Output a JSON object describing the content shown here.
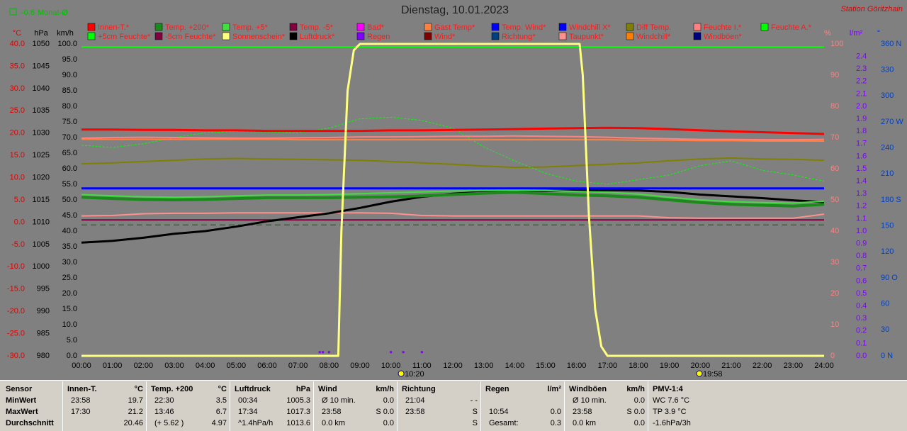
{
  "chart_data": {
    "type": "line",
    "title": "Dienstag, 10.01.2023",
    "station": "Station Göritzhain",
    "monthly_average": {
      "value": -0.6,
      "label": "Monat-Ø",
      "axis": "temp",
      "color": "#00c000"
    },
    "x": [
      0,
      1,
      2,
      3,
      4,
      5,
      6,
      7,
      8,
      9,
      10,
      11,
      12,
      13,
      14,
      15,
      16,
      17,
      18,
      19,
      20,
      21,
      22,
      23,
      24
    ],
    "xlim": [
      0,
      24
    ],
    "xticks": [
      {
        "value": 0,
        "label": "00:00"
      },
      {
        "value": 1,
        "label": "01:00"
      },
      {
        "value": 2,
        "label": "02:00"
      },
      {
        "value": 3,
        "label": "03:00"
      },
      {
        "value": 4,
        "label": "04:00"
      },
      {
        "value": 5,
        "label": "05:00"
      },
      {
        "value": 6,
        "label": "06:00"
      },
      {
        "value": 7,
        "label": "07:00"
      },
      {
        "value": 8,
        "label": "08:00"
      },
      {
        "value": 9,
        "label": "09:00"
      },
      {
        "value": 10,
        "label": "10:00"
      },
      {
        "value": 11,
        "label": "11:00"
      },
      {
        "value": 12,
        "label": "12:00"
      },
      {
        "value": 13,
        "label": "13:00"
      },
      {
        "value": 14,
        "label": "14:00"
      },
      {
        "value": 15,
        "label": "15:00"
      },
      {
        "value": 16,
        "label": "16:00"
      },
      {
        "value": 17,
        "label": "17:00"
      },
      {
        "value": 18,
        "label": "18:00"
      },
      {
        "value": 19,
        "label": "19:00"
      },
      {
        "value": 20,
        "label": "20:00"
      },
      {
        "value": 21,
        "label": "21:00"
      },
      {
        "value": 22,
        "label": "22:00"
      },
      {
        "value": 23,
        "label": "23:00"
      },
      {
        "value": 24,
        "label": "24:00"
      }
    ],
    "sun_markers": [
      {
        "time": 10.33,
        "label": "10:20"
      },
      {
        "time": 19.97,
        "label": "19:58"
      }
    ],
    "axes": {
      "temp": {
        "label": "°C",
        "color": "#e00000",
        "lim": [
          -30,
          40
        ],
        "ticks": [
          {
            "value": 40,
            "label": "40.0"
          },
          {
            "value": 35,
            "label": "35.0"
          },
          {
            "value": 30,
            "label": "30.0"
          },
          {
            "value": 25,
            "label": "25.0"
          },
          {
            "value": 20,
            "label": "20.0"
          },
          {
            "value": 15,
            "label": "15.0"
          },
          {
            "value": 10,
            "label": "10.0"
          },
          {
            "value": 5,
            "label": "5.0"
          },
          {
            "value": 0,
            "label": "0.0"
          },
          {
            "value": -5,
            "label": "-5.0"
          },
          {
            "value": -10,
            "label": "-10.0"
          },
          {
            "value": -15,
            "label": "-15.0"
          },
          {
            "value": -20,
            "label": "-20.0"
          },
          {
            "value": -25,
            "label": "-25.0"
          },
          {
            "value": -30,
            "label": "-30.0"
          }
        ]
      },
      "pressure": {
        "label": "hPa",
        "color": "#000000",
        "lim": [
          980,
          1050
        ],
        "ticks": [
          1050,
          1045,
          1040,
          1035,
          1030,
          1025,
          1020,
          1015,
          1010,
          1005,
          1000,
          995,
          990,
          985,
          980
        ]
      },
      "speed": {
        "label": "km/h",
        "color": "#000000",
        "lim": [
          0,
          100
        ],
        "ticks": [
          {
            "value": 100,
            "label": "100.0"
          },
          {
            "value": 95,
            "label": "95.0"
          },
          {
            "value": 90,
            "label": "90.0"
          },
          {
            "value": 85,
            "label": "85.0"
          },
          {
            "value": 80,
            "label": "80.0"
          },
          {
            "value": 75,
            "label": "75.0"
          },
          {
            "value": 70,
            "label": "70.0"
          },
          {
            "value": 65,
            "label": "65.0"
          },
          {
            "value": 60,
            "label": "60.0"
          },
          {
            "value": 55,
            "label": "55.0"
          },
          {
            "value": 50,
            "label": "50.0"
          },
          {
            "value": 45,
            "label": "45.0"
          },
          {
            "value": 40,
            "label": "40.0"
          },
          {
            "value": 35,
            "label": "35.0"
          },
          {
            "value": 30,
            "label": "30.0"
          },
          {
            "value": 25,
            "label": "25.0"
          },
          {
            "value": 20,
            "label": "20.0"
          },
          {
            "value": 15,
            "label": "15.0"
          },
          {
            "value": 10,
            "label": "10.0"
          },
          {
            "value": 5,
            "label": "5.0"
          },
          {
            "value": 0,
            "label": "0.0"
          }
        ]
      },
      "percent": {
        "label": "%",
        "color": "#ff8080",
        "lim": [
          0,
          100
        ],
        "ticks": [
          100,
          90,
          80,
          70,
          60,
          50,
          40,
          30,
          20,
          10,
          0
        ]
      },
      "rain": {
        "label": "l/m²",
        "color": "#8000ff",
        "lim": [
          0,
          2.5
        ],
        "ticks": [
          {
            "value": 2.4,
            "label": "2.4"
          },
          {
            "value": 2.3,
            "label": "2.3"
          },
          {
            "value": 2.2,
            "label": "2.2"
          },
          {
            "value": 2.1,
            "label": "2.1"
          },
          {
            "value": 2,
            "label": "2.0"
          },
          {
            "value": 1.9,
            "label": "1.9"
          },
          {
            "value": 1.8,
            "label": "1.8"
          },
          {
            "value": 1.7,
            "label": "1.7"
          },
          {
            "value": 1.6,
            "label": "1.6"
          },
          {
            "value": 1.5,
            "label": "1.5"
          },
          {
            "value": 1.4,
            "label": "1.4"
          },
          {
            "value": 1.3,
            "label": "1.3"
          },
          {
            "value": 1.2,
            "label": "1.2"
          },
          {
            "value": 1.1,
            "label": "1.1"
          },
          {
            "value": 1,
            "label": "1.0"
          },
          {
            "value": 0.9,
            "label": "0.9"
          },
          {
            "value": 0.8,
            "label": "0.8"
          },
          {
            "value": 0.7,
            "label": "0.7"
          },
          {
            "value": 0.6,
            "label": "0.6"
          },
          {
            "value": 0.5,
            "label": "0.5"
          },
          {
            "value": 0.4,
            "label": "0.4"
          },
          {
            "value": 0.3,
            "label": "0.3"
          },
          {
            "value": 0.2,
            "label": "0.2"
          },
          {
            "value": 0.1,
            "label": "0.1"
          },
          {
            "value": 0,
            "label": "0.0"
          }
        ]
      },
      "direction": {
        "label": "°",
        "color": "#0040c0",
        "lim": [
          0,
          360
        ],
        "ticks": [
          {
            "value": 360,
            "label": "360 N"
          },
          330,
          300,
          {
            "value": 270,
            "label": "270 W"
          },
          240,
          210,
          {
            "value": 180,
            "label": "180 S"
          },
          150,
          120,
          {
            "value": 90,
            "label": "90 O"
          },
          60,
          30,
          {
            "value": 0,
            "label": "0 N"
          }
        ]
      }
    },
    "series": [
      {
        "name": "Innen-T.*",
        "color": "#ff0000",
        "axis": "temp",
        "width": 3,
        "values": [
          20.8,
          20.8,
          20.7,
          20.7,
          20.6,
          20.6,
          20.5,
          20.5,
          20.5,
          20.5,
          20.6,
          20.6,
          20.7,
          20.8,
          20.9,
          21.0,
          21.1,
          21.2,
          21.1,
          20.9,
          20.6,
          20.4,
          20.2,
          20.0,
          19.8
        ]
      },
      {
        "name": "Temp. +200*",
        "color": "#1a8a1a",
        "axis": "temp",
        "width": 4,
        "values": [
          5.6,
          5.3,
          5.1,
          5.0,
          5.1,
          5.3,
          5.5,
          5.5,
          5.5,
          5.6,
          5.7,
          5.9,
          6.2,
          6.5,
          6.7,
          6.4,
          6.1,
          5.9,
          5.6,
          5.0,
          4.4,
          4.0,
          3.8,
          3.6,
          4.0
        ]
      },
      {
        "name": "Temp. +5*",
        "color": "#40e040",
        "axis": "temp",
        "width": 2,
        "values": [
          6.2,
          5.9,
          5.7,
          5.6,
          5.7,
          5.9,
          6.1,
          6.1,
          6.2,
          6.4,
          6.6,
          6.8,
          7.0,
          7.1,
          7.2,
          7.1,
          6.9,
          6.7,
          6.3,
          5.6,
          5.0,
          4.6,
          4.4,
          4.3,
          4.7
        ]
      },
      {
        "name": "Temp. -5*",
        "color": "#800040",
        "axis": "temp",
        "width": 2,
        "values": [
          0.5,
          0.5,
          0.5,
          0.5,
          0.5,
          0.5,
          0.5,
          0.5,
          0.5,
          0.5,
          0.5,
          0.5,
          0.5,
          0.5,
          0.5,
          0.5,
          0.5,
          0.5,
          0.5,
          0.5,
          0.5,
          0.5,
          0.5,
          0.5,
          0.5
        ]
      },
      {
        "name": "Bad*",
        "color": "#ff00ff"
      },
      {
        "name": "Gast Temp*",
        "color": "#ff8040",
        "axis": "temp",
        "width": 2,
        "values": [
          18.6,
          18.6,
          18.6,
          18.6,
          18.6,
          18.6,
          18.6,
          18.5,
          18.5,
          18.5,
          18.5,
          18.5,
          18.5,
          18.5,
          18.5,
          18.5,
          18.5,
          18.5,
          18.4,
          18.4,
          18.3,
          18.3,
          18.2,
          18.2,
          18.2
        ]
      },
      {
        "name": "Temp. Wind*",
        "color": "#0000ff"
      },
      {
        "name": "Windchill X*",
        "color": "#0000ff",
        "axis": "temp",
        "width": 3,
        "values": [
          7.6,
          7.6,
          7.6,
          7.6,
          7.6,
          7.6,
          7.6,
          7.6,
          7.6,
          7.6,
          7.6,
          7.6,
          7.6,
          7.6,
          7.6,
          7.6,
          7.6,
          7.6,
          7.6,
          7.6,
          7.6,
          7.6,
          7.6,
          7.6,
          7.6
        ]
      },
      {
        "name": "Diff Temp.",
        "color": "#808000",
        "axis": "temp",
        "width": 2,
        "values": [
          13.1,
          13.3,
          13.6,
          13.9,
          14.2,
          14.3,
          14.2,
          14.1,
          14.0,
          13.9,
          13.6,
          13.3,
          13.0,
          12.6,
          12.3,
          12.4,
          12.7,
          13.0,
          13.3,
          13.8,
          14.2,
          14.4,
          14.2,
          14.1,
          13.9
        ]
      },
      {
        "name": "Feuchte I.*",
        "color": "#ff8080",
        "axis": "percent",
        "width": 2,
        "values": [
          69.8,
          70.0,
          70.1,
          70.0,
          69.9,
          69.8,
          69.8,
          69.9,
          70.0,
          70.2,
          70.2,
          70.3,
          70.4,
          70.4,
          70.5,
          70.4,
          70.3,
          70.1,
          69.8,
          69.6,
          69.4,
          69.4,
          69.3,
          69.3,
          69.4
        ]
      },
      {
        "name": "Feuchte A.*",
        "color": "#00ff00",
        "axis": "percent",
        "width": 2,
        "values": [
          99,
          99,
          99,
          99,
          99,
          99,
          99,
          99,
          99,
          99,
          99,
          99,
          99,
          99,
          99,
          99,
          99,
          99,
          99,
          99,
          99,
          99,
          99,
          99,
          99
        ]
      },
      {
        "name": "+5cm Feuchte*",
        "color": "#00ff00",
        "axis": "percent",
        "width": 1,
        "dashed": true,
        "values": [
          67.5,
          66.8,
          68.0,
          70.0,
          71.5,
          72.0,
          71.8,
          71.5,
          73.0,
          76.0,
          76.5,
          75.5,
          73.0,
          67.0,
          62.5,
          58.5,
          56.0,
          55.0,
          56.5,
          58.0,
          61.0,
          62.5,
          59.5,
          58.0,
          56.0
        ]
      },
      {
        "name": "-5cm Feuchte*",
        "color": "#800040"
      },
      {
        "name": "Sonnenschein*",
        "color": "#ffff80",
        "axis": "percent",
        "width": 3,
        "x": [
          0,
          8.3,
          8.4,
          8.6,
          8.8,
          9.0,
          16.1,
          16.2,
          16.4,
          16.6,
          16.8,
          17.0,
          24
        ],
        "values": [
          0,
          0,
          40,
          85,
          98,
          100,
          100,
          90,
          45,
          15,
          3,
          0,
          0
        ]
      },
      {
        "name": "Luftdruck*",
        "color": "#000000",
        "label_color": "#000000",
        "axis": "pressure",
        "width": 3,
        "values": [
          1005.4,
          1005.8,
          1006.5,
          1007.4,
          1008.0,
          1009.0,
          1010.2,
          1011.1,
          1012.0,
          1013.2,
          1014.6,
          1015.7,
          1016.4,
          1016.8,
          1017.0,
          1017.0,
          1017.1,
          1017.2,
          1017.1,
          1016.8,
          1016.2,
          1015.8,
          1015.4,
          1014.9,
          1014.5
        ]
      },
      {
        "name": "Regen",
        "color": "#8000ff",
        "label_color": "#8000ff",
        "axis": "rain",
        "markers": true,
        "x": [
          7.7,
          7.8,
          8.0,
          10.0,
          10.4,
          11.0
        ],
        "values": [
          0.03,
          0.03,
          0.03,
          0.03,
          0.03,
          0.03
        ]
      },
      {
        "name": "Wind*",
        "color": "#800000",
        "label_color": "#800000"
      },
      {
        "name": "Richtung*",
        "color": "#004080",
        "label_color": "#0040a0"
      },
      {
        "name": "Taupunkt*",
        "color": "#ff9090",
        "axis": "temp",
        "width": 2,
        "values": [
          1.4,
          1.5,
          1.9,
          2.0,
          2.0,
          2.1,
          2.1,
          2.1,
          2.1,
          2.1,
          2.0,
          1.5,
          1.4,
          1.4,
          1.4,
          1.4,
          1.4,
          1.4,
          1.4,
          1.0,
          0.9,
          0.9,
          0.9,
          0.9,
          1.8
        ]
      },
      {
        "name": "Windchill*",
        "color": "#ff8000"
      },
      {
        "name": "Windböen*",
        "color": "#000080",
        "label_color": "#400000"
      }
    ]
  },
  "table": {
    "sensor_header": "Sensor",
    "row_labels": [
      "MinWert",
      "MaxWert",
      "Durchschnitt"
    ],
    "blocks": [
      {
        "title": "Innen-T.",
        "unit": "°C",
        "rows": [
          [
            "23:58",
            "19.7"
          ],
          [
            "17:30",
            "21.2"
          ],
          [
            null,
            "20.46"
          ]
        ]
      },
      {
        "title": "Temp. +200",
        "unit": "°C",
        "rows": [
          [
            "22:30",
            "3.5"
          ],
          [
            "13:46",
            "6.7"
          ],
          [
            "(+ 5.62 )",
            "4.97"
          ]
        ]
      },
      {
        "title": "Luftdruck",
        "unit": "hPa",
        "rows": [
          [
            "00:34",
            "1005.3"
          ],
          [
            "17:34",
            "1017.3"
          ],
          [
            "^1.4hPa/h",
            "1013.6"
          ]
        ]
      },
      {
        "title": "Wind",
        "unit": "km/h",
        "rows": [
          [
            "Ø 10 min.",
            "0.0"
          ],
          [
            "23:58",
            "S 0.0"
          ],
          [
            "0.0 km",
            "0.0"
          ]
        ]
      },
      {
        "title": "Richtung",
        "unit": null,
        "rows": [
          [
            "21:04",
            "- -"
          ],
          [
            "23:58",
            "S"
          ],
          [
            null,
            "S"
          ]
        ]
      },
      {
        "title": "Regen",
        "unit": "l/m²",
        "rows": [
          [
            null,
            null
          ],
          [
            "10:54",
            "0.0"
          ],
          [
            "Gesamt:",
            "0.3"
          ]
        ]
      },
      {
        "title": "Windböen",
        "unit": "km/h",
        "rows": [
          [
            "Ø 10 min.",
            "0.0"
          ],
          [
            "23:58",
            "S 0.0"
          ],
          [
            "0.0 km",
            "0.0"
          ]
        ]
      },
      {
        "title": "PMV-1:4",
        "unit": null,
        "rows": [
          [
            "WC 7.6 °C",
            null
          ],
          [
            "TP 3.9 °C",
            null
          ],
          [
            "-1.6hPa/3h",
            null
          ]
        ]
      }
    ]
  }
}
